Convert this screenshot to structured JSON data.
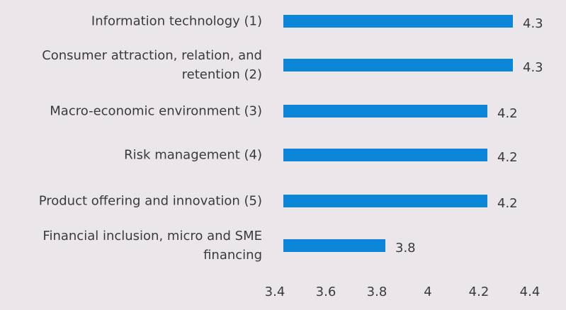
{
  "chart_data": {
    "type": "bar",
    "orientation": "horizontal",
    "categories": [
      "Information technology (1)",
      "Consumer attraction, relation, and retention (2)",
      "Macro-economic environment (3)",
      "Risk management (4)",
      "Product offering and innovation (5)",
      "Financial inclusion, micro and SME financing"
    ],
    "values": [
      4.3,
      4.3,
      4.2,
      4.2,
      4.2,
      3.8
    ],
    "color": "#0b86d8",
    "xlim": [
      3.4,
      4.4
    ],
    "xticks": [
      3.4,
      3.6,
      3.8,
      4,
      4.2,
      4.4
    ],
    "grid": false
  }
}
